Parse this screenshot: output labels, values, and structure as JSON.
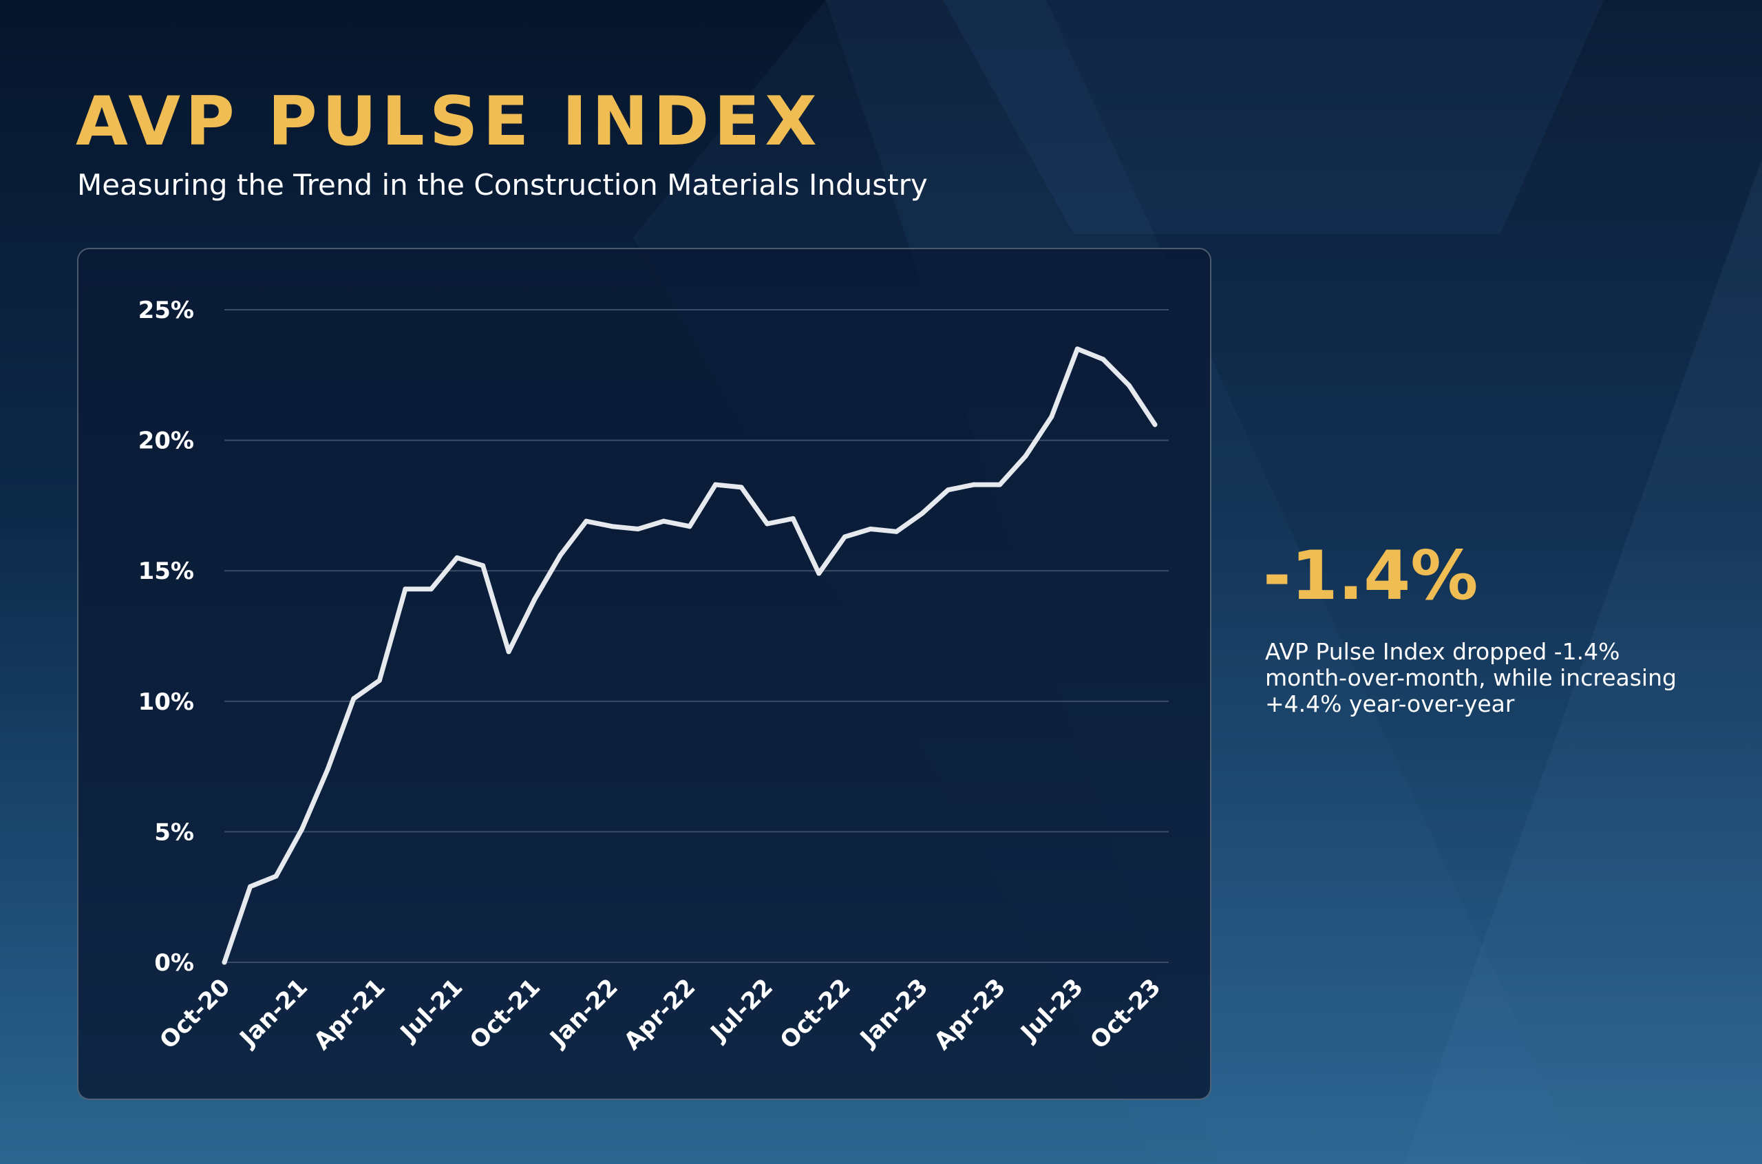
{
  "header": {
    "title": "AVP PULSE INDEX",
    "subtitle": "Measuring the Trend in the Construction Materials Industry"
  },
  "highlight": {
    "value": "-1.4%",
    "description": "AVP Pulse Index dropped -1.4% month-over-month, while increasing +4.4% year-over-year"
  },
  "colors": {
    "accent": "#f0bd55",
    "line": "#e6e9ee",
    "grid": "#3a4c68",
    "text": "#ffffff"
  },
  "chart_data": {
    "type": "line",
    "title": "",
    "xlabel": "",
    "ylabel": "",
    "grid": true,
    "ylim": [
      0,
      25
    ],
    "yticks": [
      0,
      5,
      10,
      15,
      20,
      25
    ],
    "ytick_labels": [
      "0%",
      "5%",
      "10%",
      "15%",
      "20%",
      "25%"
    ],
    "x_tick_labels": [
      "Oct-20",
      "Jan-21",
      "Apr-21",
      "Jul-21",
      "Oct-21",
      "Jan-22",
      "Apr-22",
      "Jul-22",
      "Oct-22",
      "Jan-23",
      "Apr-23",
      "Jul-23",
      "Oct-23"
    ],
    "x": [
      "Oct-20",
      "Nov-20",
      "Dec-20",
      "Jan-21",
      "Feb-21",
      "Mar-21",
      "Apr-21",
      "May-21",
      "Jun-21",
      "Jul-21",
      "Aug-21",
      "Sep-21",
      "Oct-21",
      "Nov-21",
      "Dec-21",
      "Jan-22",
      "Feb-22",
      "Mar-22",
      "Apr-22",
      "May-22",
      "Jun-22",
      "Jul-22",
      "Aug-22",
      "Sep-22",
      "Oct-22",
      "Nov-22",
      "Dec-22",
      "Jan-23",
      "Feb-23",
      "Mar-23",
      "Apr-23",
      "May-23",
      "Jun-23",
      "Jul-23",
      "Aug-23",
      "Sep-23",
      "Oct-23"
    ],
    "series": [
      {
        "values": [
          0.0,
          2.9,
          3.3,
          5.1,
          7.4,
          10.1,
          10.8,
          14.3,
          14.3,
          15.5,
          15.2,
          11.9,
          13.9,
          15.6,
          16.9,
          16.7,
          16.6,
          16.9,
          16.7,
          18.3,
          18.2,
          16.8,
          17.0,
          14.9,
          16.3,
          16.6,
          16.5,
          17.2,
          18.1,
          18.3,
          18.3,
          19.4,
          20.9,
          23.5,
          23.1,
          22.1,
          20.6
        ]
      }
    ]
  }
}
